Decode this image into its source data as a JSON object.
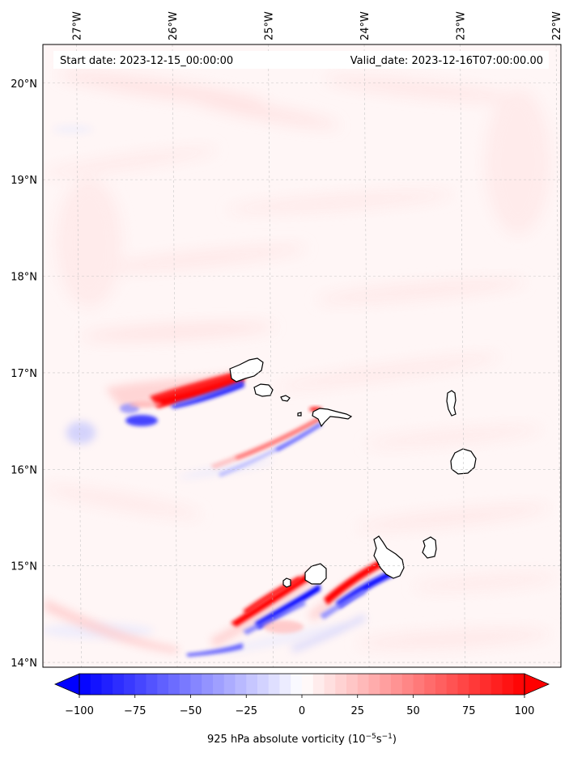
{
  "header": {
    "start_date": "Start date: 2023-12-15_00:00:00",
    "valid_date": "Valid_date: 2023-12-16T07:00:00.00"
  },
  "map": {
    "lon_labels": [
      "27°W",
      "26°W",
      "25°W",
      "24°W",
      "23°W",
      "22°W"
    ],
    "lat_labels": [
      "20°N",
      "19°N",
      "18°N",
      "17°N",
      "16°N",
      "15°N",
      "14°N"
    ],
    "lon_range": [
      -27.35,
      -21.95
    ],
    "lat_range": [
      13.95,
      20.4
    ],
    "gridlines": true,
    "field": "925 hPa absolute vorticity",
    "islands": [
      "Santo Antão",
      "São Vicente",
      "Santa Luzia",
      "São Nicolau",
      "Sal",
      "Boa Vista",
      "Fogo",
      "Brava",
      "Santiago",
      "Maio"
    ]
  },
  "colorbar": {
    "ticks": [
      "−100",
      "−75",
      "−50",
      "−25",
      "0",
      "25",
      "50",
      "75",
      "100"
    ],
    "tick_values": [
      -100,
      -75,
      -50,
      -25,
      0,
      25,
      50,
      75,
      100
    ],
    "range": [
      -100,
      100
    ],
    "extend": "both",
    "colormap": "bwr",
    "label": "925 hPa absolute vorticity (10",
    "label_exp1": "−5",
    "label_mid": "s",
    "label_exp2": "−1",
    "label_end": ")",
    "colors": {
      "min": "#0000ff",
      "mid": "#ffffff",
      "max": "#ff0000"
    }
  }
}
